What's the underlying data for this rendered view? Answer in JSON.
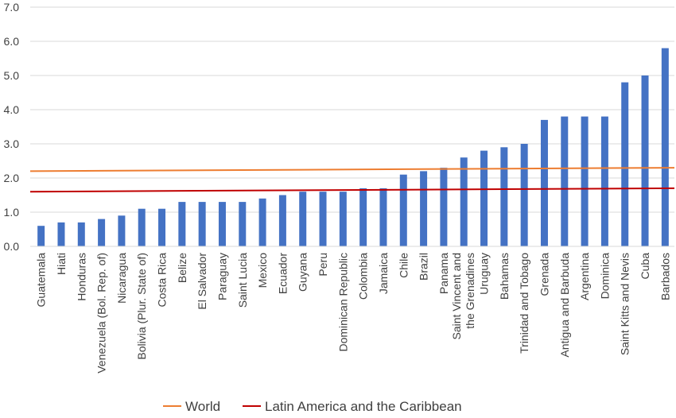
{
  "chart_data": {
    "type": "bar",
    "title": "",
    "xlabel": "",
    "ylabel": "",
    "ylim": [
      0,
      7
    ],
    "yticks": [
      "0.0",
      "1.0",
      "2.0",
      "3.0",
      "4.0",
      "5.0",
      "6.0",
      "7.0"
    ],
    "grid": true,
    "legend_position": "bottom",
    "categories": [
      "Guatemala",
      "Hiati",
      "Honduras",
      "Venezuela (Bol. Rep. of)",
      "Nicaragua",
      "Bolivia (Plur. State of)",
      "Costa Rica",
      "Belize",
      "El Salvador",
      "Paraguay",
      "Saint Lucia",
      "Mexico",
      "Ecuador",
      "Guyana",
      "Peru",
      "Dominican Republic",
      "Colombia",
      "Jamaica",
      "Chile",
      "Brazil",
      "Panama",
      "Saint Vincent and the Grenadines",
      "Uruguay",
      "Bahamas",
      "Trinidad and Tobago",
      "Grenada",
      "Antigua and Barbuda",
      "Argentina",
      "Dominica",
      "Saint Kitts and Nevis",
      "Cuba",
      "Barbados"
    ],
    "values": [
      0.6,
      0.7,
      0.7,
      0.8,
      0.9,
      1.1,
      1.1,
      1.3,
      1.3,
      1.3,
      1.3,
      1.4,
      1.5,
      1.6,
      1.6,
      1.6,
      1.7,
      1.7,
      2.1,
      2.2,
      2.3,
      2.6,
      2.8,
      2.9,
      3.0,
      3.7,
      3.8,
      3.8,
      3.8,
      4.8,
      5.0,
      5.8
    ],
    "bar_color": "#4472c4",
    "reference_lines": [
      {
        "name": "World",
        "start": 2.2,
        "end": 2.3,
        "color": "#ed7d31"
      },
      {
        "name": "Latin America and the Caribbean",
        "start": 1.6,
        "end": 1.7,
        "color": "#c00000"
      }
    ]
  }
}
